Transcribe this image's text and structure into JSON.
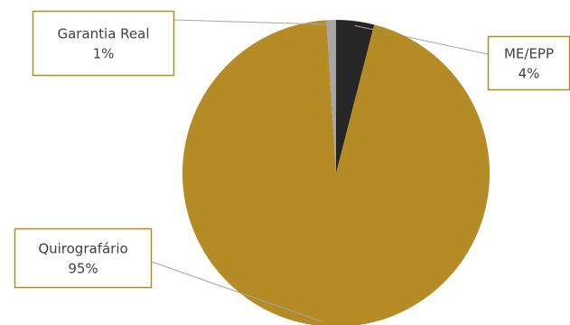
{
  "chart_data": {
    "type": "pie",
    "categories": [
      "ME/EPP",
      "Quirografário",
      "Garantia Real"
    ],
    "values": [
      4,
      95,
      1
    ],
    "value_labels": [
      "4%",
      "95%",
      "1%"
    ],
    "colors": [
      "#262626",
      "#b58b25",
      "#a6a6a6"
    ],
    "label_border_color": "#b58b25"
  }
}
